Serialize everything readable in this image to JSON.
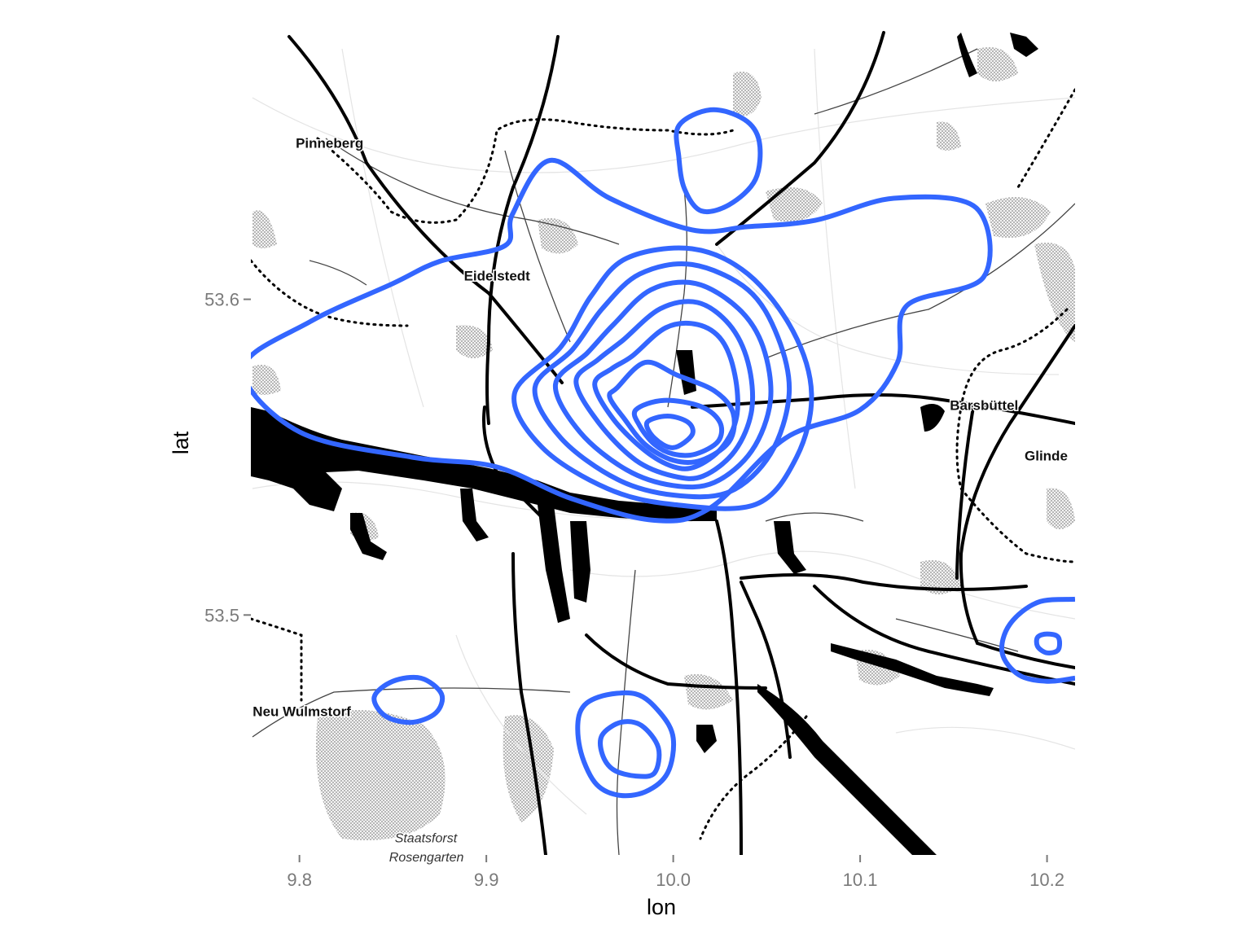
{
  "axes": {
    "xlabel": "lon",
    "ylabel": "lat",
    "xticks": [
      "9.8",
      "9.9",
      "10.0",
      "10.1",
      "10.2"
    ],
    "yticks": [
      "53.6",
      "53.5"
    ]
  },
  "places": [
    {
      "id": "pinneberg",
      "label": "Pinneberg",
      "style": "bold",
      "lon": 9.798,
      "lat": 53.648
    },
    {
      "id": "eidelstedt",
      "label": "Eidelstedt",
      "style": "bold",
      "lon": 9.888,
      "lat": 53.606
    },
    {
      "id": "barsbuettel",
      "label": "Barsbüttel",
      "style": "bold",
      "lon": 10.148,
      "lat": 53.565
    },
    {
      "id": "glinde",
      "label": "Glinde",
      "style": "bold",
      "lon": 10.188,
      "lat": 53.549
    },
    {
      "id": "neu-wulmstorf",
      "label": "Neu Wulmstorf",
      "style": "bold",
      "lon": 9.775,
      "lat": 53.468
    },
    {
      "id": "staatsforst",
      "label": "Staatsforst",
      "style": "italic",
      "lon": 9.851,
      "lat": 53.428
    },
    {
      "id": "rosengarten",
      "label": "Rosengarten",
      "style": "italic",
      "lon": 9.848,
      "lat": 53.422
    }
  ],
  "colors": {
    "contour": "#3366ff",
    "roads": "#000000",
    "water": "#000000",
    "forest": "#bdbdbd",
    "tick_text": "#7a7a7a"
  },
  "chart_data": {
    "type": "contour",
    "xlim": [
      9.774,
      10.215
    ],
    "ylim": [
      53.424,
      53.685
    ],
    "series": [
      {
        "level": 1,
        "points": [
          [
            9.77,
            53.578
          ],
          [
            9.806,
            53.593
          ],
          [
            9.85,
            53.605
          ],
          [
            9.875,
            53.612
          ],
          [
            9.91,
            53.617
          ],
          [
            9.914,
            53.627
          ],
          [
            9.934,
            53.644
          ],
          [
            9.966,
            53.632
          ],
          [
            10.01,
            53.622
          ],
          [
            10.04,
            53.623
          ],
          [
            10.076,
            53.625
          ],
          [
            10.118,
            53.632
          ],
          [
            10.162,
            53.629
          ],
          [
            10.166,
            53.607
          ],
          [
            10.125,
            53.598
          ],
          [
            10.12,
            53.58
          ],
          [
            10.1,
            53.565
          ],
          [
            10.06,
            53.556
          ],
          [
            10.02,
            53.534
          ],
          [
            9.99,
            53.53
          ],
          [
            9.945,
            53.537
          ],
          [
            9.905,
            53.547
          ],
          [
            9.86,
            53.55
          ],
          [
            9.8,
            53.558
          ],
          [
            9.77,
            53.578
          ]
        ]
      },
      {
        "level": 2,
        "points": [
          [
            9.956,
            53.601
          ],
          [
            9.975,
            53.613
          ],
          [
            10.01,
            53.616
          ],
          [
            10.04,
            53.608
          ],
          [
            10.064,
            53.59
          ],
          [
            10.074,
            53.57
          ],
          [
            10.066,
            53.55
          ],
          [
            10.044,
            53.535
          ],
          [
            10.0,
            53.535
          ],
          [
            9.965,
            53.54
          ],
          [
            9.93,
            53.553
          ],
          [
            9.915,
            53.57
          ],
          [
            9.94,
            53.585
          ],
          [
            9.956,
            53.601
          ]
        ]
      },
      {
        "level": 3,
        "points": [
          [
            9.962,
            53.597
          ],
          [
            9.982,
            53.608
          ],
          [
            10.01,
            53.611
          ],
          [
            10.04,
            53.603
          ],
          [
            10.056,
            53.588
          ],
          [
            10.062,
            53.57
          ],
          [
            10.052,
            53.551
          ],
          [
            10.03,
            53.539
          ],
          [
            10.0,
            53.538
          ],
          [
            9.97,
            53.543
          ],
          [
            9.94,
            53.556
          ],
          [
            9.926,
            53.572
          ],
          [
            9.946,
            53.584
          ],
          [
            9.962,
            53.597
          ]
        ]
      },
      {
        "level": 4,
        "points": [
          [
            9.968,
            53.592
          ],
          [
            9.988,
            53.603
          ],
          [
            10.012,
            53.605
          ],
          [
            10.035,
            53.597
          ],
          [
            10.048,
            53.585
          ],
          [
            10.052,
            53.568
          ],
          [
            10.042,
            53.552
          ],
          [
            10.022,
            53.542
          ],
          [
            10.0,
            53.541
          ],
          [
            9.975,
            53.546
          ],
          [
            9.95,
            53.558
          ],
          [
            9.937,
            53.573
          ],
          [
            9.954,
            53.583
          ],
          [
            9.968,
            53.592
          ]
        ]
      },
      {
        "level": 5,
        "points": [
          [
            9.973,
            53.587
          ],
          [
            9.993,
            53.597
          ],
          [
            10.013,
            53.599
          ],
          [
            10.03,
            53.592
          ],
          [
            10.04,
            53.58
          ],
          [
            10.042,
            53.565
          ],
          [
            10.033,
            53.552
          ],
          [
            10.016,
            53.544
          ],
          [
            10.0,
            53.544
          ],
          [
            9.98,
            53.549
          ],
          [
            9.96,
            53.561
          ],
          [
            9.948,
            53.574
          ],
          [
            9.96,
            53.581
          ],
          [
            9.973,
            53.587
          ]
        ]
      },
      {
        "level": 6,
        "points": [
          [
            9.978,
            53.582
          ],
          [
            9.996,
            53.591
          ],
          [
            10.013,
            53.592
          ],
          [
            10.026,
            53.587
          ],
          [
            10.033,
            53.576
          ],
          [
            10.034,
            53.563
          ],
          [
            10.026,
            53.553
          ],
          [
            10.012,
            53.547
          ],
          [
            10.0,
            53.547
          ],
          [
            9.985,
            53.552
          ],
          [
            9.968,
            53.562
          ],
          [
            9.958,
            53.573
          ],
          [
            9.967,
            53.578
          ],
          [
            9.978,
            53.582
          ]
        ]
      },
      {
        "level": 7,
        "points": [
          [
            9.97,
            53.572
          ],
          [
            9.985,
            53.58
          ],
          [
            10.002,
            53.576
          ],
          [
            10.022,
            53.571
          ],
          [
            10.032,
            53.564
          ],
          [
            10.03,
            53.555
          ],
          [
            10.015,
            53.549
          ],
          [
            10.0,
            53.549
          ],
          [
            9.985,
            53.554
          ],
          [
            9.974,
            53.562
          ],
          [
            9.966,
            53.569
          ],
          [
            9.97,
            53.572
          ]
        ]
      },
      {
        "level": 8,
        "points": [
          [
            9.98,
            53.565
          ],
          [
            9.995,
            53.568
          ],
          [
            10.015,
            53.566
          ],
          [
            10.025,
            53.561
          ],
          [
            10.024,
            53.555
          ],
          [
            10.012,
            53.551
          ],
          [
            10.0,
            53.551
          ],
          [
            9.99,
            53.554
          ],
          [
            9.982,
            53.56
          ],
          [
            9.98,
            53.565
          ]
        ]
      },
      {
        "level": 9,
        "points": [
          [
            9.986,
            53.561
          ],
          [
            9.997,
            53.563
          ],
          [
            10.008,
            53.561
          ],
          [
            10.01,
            53.557
          ],
          [
            10.0,
            53.553
          ],
          [
            9.99,
            53.556
          ],
          [
            9.986,
            53.561
          ]
        ]
      },
      {
        "level": 1,
        "points": [
          [
            10.003,
            53.655
          ],
          [
            10.02,
            53.66
          ],
          [
            10.038,
            53.657
          ],
          [
            10.046,
            53.65
          ],
          [
            10.044,
            53.638
          ],
          [
            10.03,
            53.63
          ],
          [
            10.015,
            53.628
          ],
          [
            10.006,
            53.635
          ],
          [
            10.003,
            53.645
          ],
          [
            10.003,
            53.655
          ]
        ]
      },
      {
        "level": 1,
        "points": [
          [
            9.84,
            53.474
          ],
          [
            9.85,
            53.479
          ],
          [
            9.865,
            53.48
          ],
          [
            9.876,
            53.475
          ],
          [
            9.873,
            53.469
          ],
          [
            9.86,
            53.466
          ],
          [
            9.846,
            53.468
          ],
          [
            9.84,
            53.474
          ]
        ]
      },
      {
        "level": 1,
        "points": [
          [
            9.95,
            53.469
          ],
          [
            9.96,
            53.474
          ],
          [
            9.98,
            53.475
          ],
          [
            9.993,
            53.469
          ],
          [
            10.0,
            53.461
          ],
          [
            9.997,
            53.45
          ],
          [
            9.985,
            53.444
          ],
          [
            9.97,
            53.443
          ],
          [
            9.958,
            53.447
          ],
          [
            9.95,
            53.458
          ],
          [
            9.95,
            53.469
          ]
        ]
      },
      {
        "level": 2,
        "points": [
          [
            9.962,
            53.462
          ],
          [
            9.972,
            53.466
          ],
          [
            9.983,
            53.465
          ],
          [
            9.992,
            53.458
          ],
          [
            9.99,
            53.45
          ],
          [
            9.98,
            53.449
          ],
          [
            9.968,
            53.451
          ],
          [
            9.962,
            53.456
          ],
          [
            9.962,
            53.462
          ]
        ]
      },
      {
        "level": 1,
        "points": [
          [
            10.215,
            53.505
          ],
          [
            10.195,
            53.504
          ],
          [
            10.18,
            53.497
          ],
          [
            10.176,
            53.488
          ],
          [
            10.185,
            53.481
          ],
          [
            10.2,
            53.479
          ],
          [
            10.215,
            53.48
          ]
        ]
      },
      {
        "level": 2,
        "points": [
          [
            10.195,
            53.493
          ],
          [
            10.2,
            53.494
          ],
          [
            10.206,
            53.493
          ],
          [
            10.206,
            53.489
          ],
          [
            10.2,
            53.488
          ],
          [
            10.195,
            53.49
          ],
          [
            10.195,
            53.493
          ]
        ]
      }
    ]
  }
}
